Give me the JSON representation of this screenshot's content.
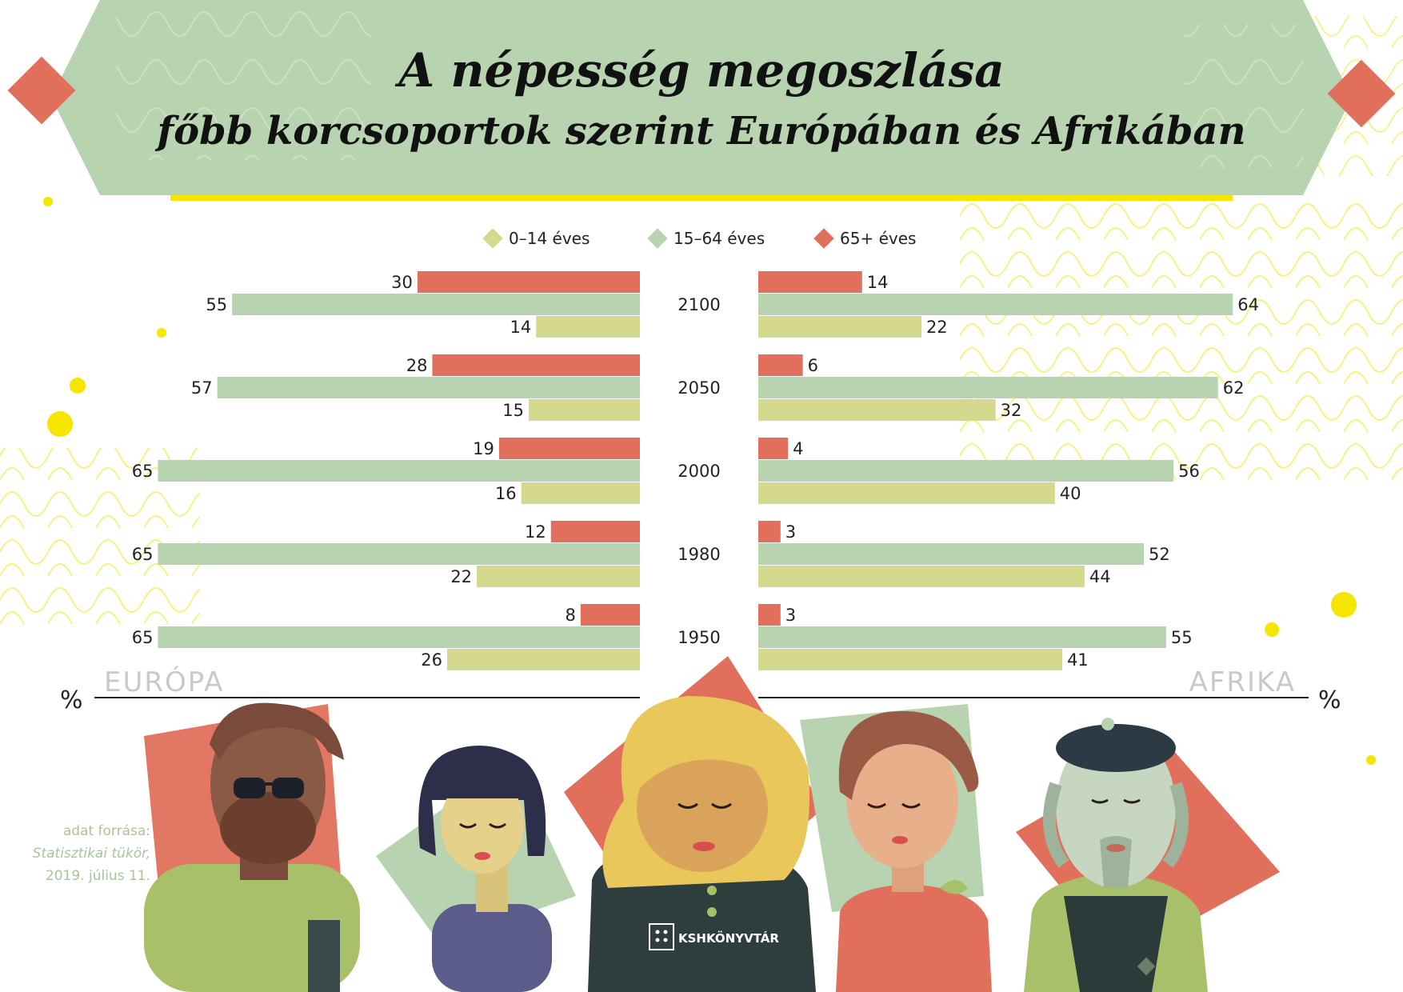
{
  "title": {
    "line1": "A népesség megoszlása",
    "line2": "főbb korcsoportok szerint Európában és Afrikában"
  },
  "legend": [
    {
      "label": "0–14 éves",
      "color": "#d5d98e"
    },
    {
      "label": "15–64 éves",
      "color": "#b8d3b0"
    },
    {
      "label": "65+ éves",
      "color": "#e0705b"
    }
  ],
  "regions": {
    "left": "EURÓPA",
    "right": "AFRIKA"
  },
  "unit": "%",
  "source": {
    "line1": "adat forrása:",
    "line2": "Statisztikai tükör,",
    "line3": "2019. július 11."
  },
  "logo": "KSHKÖNYVTÁR",
  "chart_data": {
    "type": "bar",
    "orientation": "horizontal",
    "layout": "back-to-back",
    "categories": [
      "2100",
      "2050",
      "2000",
      "1980",
      "1950"
    ],
    "panels": [
      {
        "name": "EURÓPA",
        "series": [
          {
            "name": "65+ éves",
            "values": [
              30,
              28,
              19,
              12,
              8
            ]
          },
          {
            "name": "15–64 éves",
            "values": [
              55,
              57,
              65,
              65,
              65
            ]
          },
          {
            "name": "0–14 éves",
            "values": [
              14,
              15,
              16,
              22,
              26
            ]
          }
        ]
      },
      {
        "name": "AFRIKA",
        "series": [
          {
            "name": "65+ éves",
            "values": [
              14,
              6,
              4,
              3,
              3
            ]
          },
          {
            "name": "15–64 éves",
            "values": [
              64,
              62,
              56,
              52,
              55
            ]
          },
          {
            "name": "0–14 éves",
            "values": [
              22,
              32,
              40,
              44,
              41
            ]
          }
        ]
      }
    ],
    "xlim": [
      0,
      66
    ],
    "grid": false,
    "legend_position": "top"
  }
}
